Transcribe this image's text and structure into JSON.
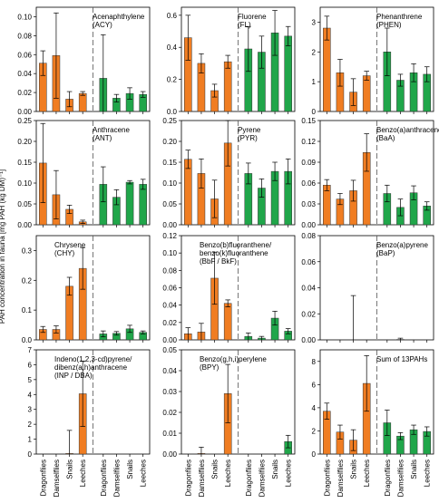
{
  "figure": {
    "ylabel": "PAH concentration in fauna [mg PAH (kg DM)⁻¹]",
    "categories": [
      "Dragonflies",
      "Damselflies",
      "Snails",
      "Leeches",
      "Dragonflies",
      "Damselflies",
      "Snails",
      "Leeches"
    ],
    "colors": {
      "group1": "#f07d22",
      "group2": "#20a64a"
    }
  },
  "chart_data": [
    {
      "type": "bar",
      "title": "Acenaphthylene (ACY)",
      "ylim": [
        0,
        0.11
      ],
      "ticks": [
        "0.00",
        "0.02",
        "0.04",
        "0.06",
        "0.08",
        "0.10"
      ],
      "values": [
        0.051,
        0.059,
        0.013,
        0.019,
        0.035,
        0.014,
        0.019,
        0.018
      ],
      "errors": [
        0.013,
        0.045,
        0.008,
        0.002,
        0.046,
        0.004,
        0.006,
        0.003
      ]
    },
    {
      "type": "bar",
      "title": "Fluorene (FL)",
      "ylim": [
        0,
        0.65
      ],
      "ticks": [
        "0.0",
        "0.2",
        "0.4",
        "0.6"
      ],
      "values": [
        0.46,
        0.3,
        0.13,
        0.31,
        0.39,
        0.37,
        0.49,
        0.47
      ],
      "errors": [
        0.14,
        0.06,
        0.04,
        0.04,
        0.14,
        0.1,
        0.14,
        0.06
      ]
    },
    {
      "type": "bar",
      "title": "Phenanthrene (PHEN)",
      "ylim": [
        0,
        3.5
      ],
      "ticks": [
        "0",
        "1",
        "2",
        "3"
      ],
      "values": [
        2.8,
        1.3,
        0.65,
        1.2,
        2.0,
        1.05,
        1.3,
        1.25
      ],
      "errors": [
        0.4,
        0.45,
        0.45,
        0.15,
        0.8,
        0.2,
        0.3,
        0.25
      ]
    },
    {
      "type": "bar",
      "title": "Anthracene (ANT)",
      "ylim": [
        0,
        0.25
      ],
      "ticks": [
        "0.00",
        "0.05",
        "0.10",
        "0.15",
        "0.20",
        "0.25"
      ],
      "values": [
        0.148,
        0.072,
        0.037,
        0.007,
        0.097,
        0.066,
        0.102,
        0.097
      ],
      "errors": [
        0.095,
        0.058,
        0.01,
        0.004,
        0.042,
        0.018,
        0.004,
        0.012
      ]
    },
    {
      "type": "bar",
      "title": "Pyrene (PYR)",
      "ylim": [
        0,
        0.25
      ],
      "ticks": [
        "0.00",
        "0.05",
        "0.10",
        "0.15",
        "0.20",
        "0.25"
      ],
      "values": [
        0.157,
        0.123,
        0.062,
        0.196,
        0.123,
        0.088,
        0.128,
        0.128
      ],
      "errors": [
        0.022,
        0.035,
        0.045,
        0.055,
        0.025,
        0.022,
        0.022,
        0.03
      ]
    },
    {
      "type": "bar",
      "title": "Benzo(a)anthracene (BaA)",
      "ylim": [
        0,
        0.15
      ],
      "ticks": [
        "0.00",
        "0.03",
        "0.06",
        "0.09",
        "0.12",
        "0.15"
      ],
      "values": [
        0.057,
        0.037,
        0.049,
        0.104,
        0.045,
        0.025,
        0.046,
        0.027
      ],
      "errors": [
        0.008,
        0.008,
        0.015,
        0.027,
        0.012,
        0.012,
        0.01,
        0.006
      ]
    },
    {
      "type": "bar",
      "title": "Chrysene (CHY)",
      "ylim": [
        0,
        0.35
      ],
      "ticks": [
        "0.0",
        "0.1",
        "0.2",
        "0.3"
      ],
      "values": [
        0.035,
        0.035,
        0.18,
        0.24,
        0.02,
        0.022,
        0.037,
        0.025
      ],
      "errors": [
        0.01,
        0.012,
        0.03,
        0.07,
        0.01,
        0.006,
        0.012,
        0.005
      ]
    },
    {
      "type": "bar",
      "title": "Benzo(b)fluoranthene/ benzo(k)fluoranthene (BbF / BkF)",
      "ylim": [
        0,
        0.12
      ],
      "ticks": [
        "0.00",
        "0.02",
        "0.04",
        "0.06",
        "0.08",
        "0.10",
        "0.12"
      ],
      "values": [
        0.007,
        0.009,
        0.071,
        0.042,
        0.004,
        0.002,
        0.025,
        0.01
      ],
      "errors": [
        0.007,
        0.01,
        0.03,
        0.004,
        0.004,
        0.002,
        0.008,
        0.003
      ]
    },
    {
      "type": "bar",
      "title": "Benzo(a)pyrene (BaP)",
      "ylim": [
        0,
        0.08
      ],
      "ticks": [
        "0.00",
        "0.02",
        "0.04",
        "0.06",
        "0.08"
      ],
      "values": [
        0,
        0,
        0,
        0,
        0,
        0.0003,
        0,
        0
      ],
      "errors": [
        0,
        0,
        0.034,
        0,
        0,
        0.001,
        0,
        0
      ]
    },
    {
      "type": "bar",
      "title": "Indeno(1,2,3-cd)pyrene/ dibenz(a,h)anthracene (INP / DBA)",
      "ylim": [
        0,
        7
      ],
      "ticks": [
        "0",
        "1",
        "2",
        "3",
        "4",
        "5",
        "6",
        "7"
      ],
      "values": [
        0,
        0,
        0.04,
        4.05,
        0,
        0,
        0,
        0
      ],
      "errors": [
        0,
        0,
        1.55,
        2.2,
        0,
        0,
        0,
        0
      ]
    },
    {
      "type": "bar",
      "title": "Benzo(g,h,i)perylene (BPY)",
      "ylim": [
        0,
        0.05
      ],
      "ticks": [
        "0.00",
        "0.01",
        "0.02",
        "0.03",
        "0.04",
        "0.05"
      ],
      "values": [
        0,
        0.0003,
        0,
        0.029,
        0,
        0,
        0,
        0.006
      ],
      "errors": [
        0,
        0.003,
        0,
        0.014,
        0,
        0,
        0,
        0.003
      ]
    },
    {
      "type": "bar",
      "title": "Sum of 13PAHs",
      "ylim": [
        0,
        9
      ],
      "ticks": [
        "0",
        "2",
        "4",
        "6",
        "8"
      ],
      "values": [
        3.7,
        1.9,
        1.2,
        6.1,
        2.7,
        1.55,
        2.1,
        1.95
      ],
      "errors": [
        0.7,
        0.6,
        0.9,
        2.4,
        1.1,
        0.3,
        0.4,
        0.4
      ]
    }
  ]
}
